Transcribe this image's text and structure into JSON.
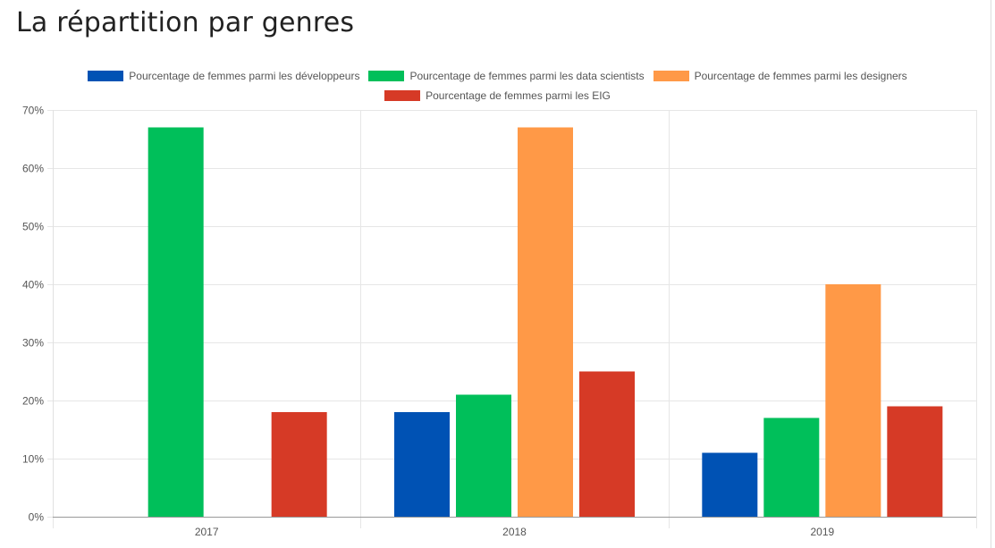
{
  "page": {
    "title": "La répartition par genres"
  },
  "chart_data": {
    "type": "bar",
    "categories": [
      "2017",
      "2018",
      "2019"
    ],
    "series": [
      {
        "name": "Pourcentage de femmes parmi les développeurs",
        "color": "#0052b4",
        "values": [
          null,
          18,
          11
        ]
      },
      {
        "name": "Pourcentage de femmes parmi les data scientists",
        "color": "#00bf5a",
        "values": [
          67,
          21,
          17
        ]
      },
      {
        "name": "Pourcentage de femmes parmi les designers",
        "color": "#ff9947",
        "values": [
          null,
          67,
          40
        ]
      },
      {
        "name": "Pourcentage de femmes parmi les EIG",
        "color": "#d63a26",
        "values": [
          18,
          25,
          19
        ]
      }
    ],
    "ylim": [
      0,
      70
    ],
    "y_ticks": [
      0,
      10,
      20,
      30,
      40,
      50,
      60,
      70
    ],
    "y_tick_labels": [
      "0%",
      "10%",
      "20%",
      "30%",
      "40%",
      "50%",
      "60%",
      "70%"
    ],
    "grid": true,
    "legend_position": "top-center"
  }
}
